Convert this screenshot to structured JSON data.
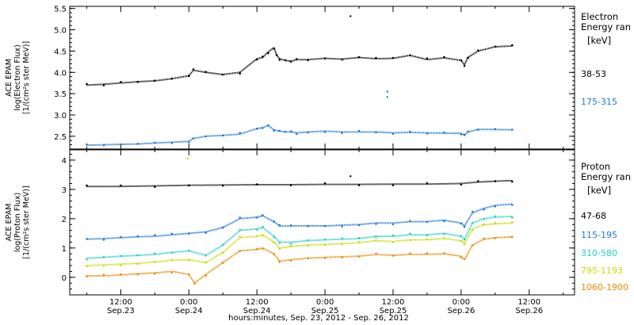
{
  "chart_data": [
    {
      "type": "scatter",
      "panel": "electron",
      "ylabel_lines": [
        "ACE EPAM",
        "log(Electron Flux)",
        "[1/(cm²s ster MeV)]"
      ],
      "ylim": [
        2.2,
        5.55
      ],
      "yticks": [
        2.5,
        3.0,
        3.5,
        4.0,
        4.5,
        5.0,
        5.5
      ],
      "ytick_labels": [
        "2.5",
        "3.0",
        "3.5",
        "4.0",
        "4.5",
        "5.0",
        "5.5"
      ],
      "legend_title_lines": [
        "Electron",
        "Energy ran"
      ],
      "legend_unit": "[keV]",
      "series": [
        {
          "name": "38-53",
          "color": "#000000",
          "x": [
            6,
            9,
            12,
            15,
            18,
            21,
            24,
            24.8,
            27,
            30,
            33,
            36,
            37,
            38,
            39,
            39.5,
            40,
            41,
            42,
            43,
            45,
            48,
            51,
            54,
            57,
            60,
            63,
            66,
            69,
            72,
            72.6,
            73.2,
            75,
            78,
            81
          ],
          "y": [
            3.7,
            3.72,
            3.75,
            3.78,
            3.8,
            3.85,
            3.92,
            4.05,
            4.0,
            3.95,
            4.0,
            4.32,
            4.35,
            4.48,
            4.58,
            4.4,
            4.32,
            4.28,
            4.26,
            4.3,
            4.3,
            4.33,
            4.31,
            4.35,
            4.32,
            4.33,
            4.4,
            4.3,
            4.34,
            4.28,
            4.18,
            4.35,
            4.5,
            4.6,
            4.62
          ]
        },
        {
          "name": "175-315",
          "color": "#1e78d2",
          "x": [
            6,
            9,
            12,
            15,
            18,
            21,
            24,
            24.8,
            27,
            30,
            33,
            36,
            37,
            38,
            39,
            40,
            41,
            42,
            43,
            45,
            48,
            51,
            54,
            57,
            60,
            63,
            66,
            69,
            72,
            72.6,
            73.2,
            75,
            78,
            81
          ],
          "y": [
            2.29,
            2.3,
            2.31,
            2.32,
            2.34,
            2.36,
            2.38,
            2.45,
            2.5,
            2.52,
            2.55,
            2.68,
            2.7,
            2.75,
            2.65,
            2.62,
            2.6,
            2.6,
            2.58,
            2.6,
            2.62,
            2.6,
            2.6,
            2.6,
            2.58,
            2.59,
            2.58,
            2.57,
            2.57,
            2.52,
            2.6,
            2.66,
            2.66,
            2.65
          ]
        }
      ],
      "outliers": [
        {
          "x": 52.5,
          "y": 5.32,
          "color": "#000000"
        },
        {
          "x": 59.0,
          "y": 3.55,
          "color": "#1e78d2"
        },
        {
          "x": 59.0,
          "y": 3.42,
          "color": "#1e78d2"
        }
      ]
    },
    {
      "type": "scatter",
      "panel": "proton",
      "ylabel_lines": [
        "ACE EPAM",
        "log(Proton Flux)",
        "[1/(cm²s ster MeV)]"
      ],
      "ylim": [
        -0.6,
        4.35
      ],
      "yticks": [
        0,
        1,
        2,
        3,
        4
      ],
      "ytick_labels": [
        "0",
        "1",
        "2",
        "3",
        "4"
      ],
      "legend_title_lines": [
        "Proton",
        "Energy ran"
      ],
      "legend_unit": "[keV]",
      "series": [
        {
          "name": "47-68",
          "color": "#000000",
          "x": [
            6,
            12,
            18,
            24,
            30,
            36,
            42,
            48,
            54,
            60,
            66,
            72,
            75,
            78,
            81
          ],
          "y": [
            3.1,
            3.1,
            3.12,
            3.14,
            3.15,
            3.16,
            3.16,
            3.17,
            3.17,
            3.18,
            3.18,
            3.2,
            3.25,
            3.28,
            3.3
          ]
        },
        {
          "name": "115-195",
          "color": "#1e78d2",
          "x": [
            6,
            9,
            12,
            15,
            18,
            21,
            24,
            27,
            30,
            33,
            36,
            37,
            39,
            40,
            42,
            45,
            48,
            51,
            54,
            57,
            60,
            63,
            66,
            69,
            72,
            72.6,
            74,
            76,
            78,
            81
          ],
          "y": [
            1.3,
            1.32,
            1.35,
            1.38,
            1.4,
            1.45,
            1.5,
            1.55,
            1.7,
            2.0,
            2.05,
            2.1,
            1.9,
            1.75,
            1.75,
            1.76,
            1.75,
            1.78,
            1.8,
            1.85,
            1.85,
            1.9,
            1.9,
            1.95,
            1.85,
            1.75,
            2.2,
            2.35,
            2.45,
            2.5
          ]
        },
        {
          "name": "310-580",
          "color": "#20d0c8",
          "x": [
            6,
            9,
            12,
            15,
            18,
            21,
            24,
            27,
            30,
            33,
            36,
            37,
            39,
            40,
            42,
            45,
            48,
            51,
            54,
            57,
            60,
            63,
            66,
            69,
            72,
            72.6,
            74,
            76,
            78,
            81
          ],
          "y": [
            0.65,
            0.68,
            0.72,
            0.75,
            0.78,
            0.85,
            0.9,
            0.75,
            1.1,
            1.6,
            1.65,
            1.7,
            1.4,
            1.2,
            1.2,
            1.25,
            1.28,
            1.3,
            1.32,
            1.4,
            1.4,
            1.45,
            1.45,
            1.5,
            1.4,
            1.3,
            1.85,
            2.0,
            2.05,
            2.08
          ]
        },
        {
          "name": "795-1193",
          "color": "#c8dc00",
          "x": [
            6,
            9,
            12,
            15,
            18,
            21,
            24,
            27,
            30,
            33,
            36,
            37,
            39,
            40,
            42,
            45,
            48,
            51,
            54,
            57,
            60,
            63,
            66,
            69,
            72,
            72.6,
            74,
            76,
            78,
            81
          ],
          "y": [
            0.4,
            0.42,
            0.45,
            0.48,
            0.52,
            0.58,
            0.6,
            0.5,
            0.85,
            1.35,
            1.4,
            1.45,
            1.2,
            1.0,
            1.05,
            1.1,
            1.12,
            1.15,
            1.18,
            1.25,
            1.22,
            1.28,
            1.28,
            1.32,
            1.25,
            1.15,
            1.65,
            1.8,
            1.82,
            1.85
          ]
        },
        {
          "name": "1060-1900",
          "color": "#e88a00",
          "x": [
            6,
            9,
            12,
            15,
            18,
            21,
            24,
            25,
            27,
            30,
            33,
            36,
            37,
            39,
            40,
            42,
            45,
            48,
            51,
            54,
            57,
            60,
            63,
            66,
            69,
            72,
            72.6,
            74,
            76,
            78,
            81
          ],
          "y": [
            0.05,
            0.05,
            0.08,
            0.12,
            0.15,
            0.2,
            0.1,
            -0.2,
            0.1,
            0.5,
            0.9,
            0.95,
            1.0,
            0.8,
            0.55,
            0.6,
            0.65,
            0.68,
            0.7,
            0.72,
            0.78,
            0.75,
            0.78,
            0.78,
            0.8,
            0.72,
            0.6,
            1.1,
            1.3,
            1.35,
            1.38
          ]
        }
      ],
      "outliers": [
        {
          "x": 23.8,
          "y": 4.05,
          "color": "#c8dc00"
        },
        {
          "x": 52.5,
          "y": 3.45,
          "color": "#000000"
        }
      ]
    }
  ],
  "x_axis": {
    "xlim": [
      3,
      92
    ],
    "ticks": [
      12,
      24,
      36,
      48,
      60,
      72,
      84
    ],
    "tick_labels_top": [
      "12:00",
      "0:00",
      "12:00",
      "0:00",
      "12:00",
      "0:00",
      "12:00"
    ],
    "tick_labels_bottom": [
      "Sep.23",
      "Sep.24",
      "Sep.24",
      "Sep.25",
      "Sep.25",
      "Sep.26",
      "Sep.26"
    ],
    "label": "hours:minutes, Sep. 23, 2012 - Sep. 26, 2012"
  }
}
